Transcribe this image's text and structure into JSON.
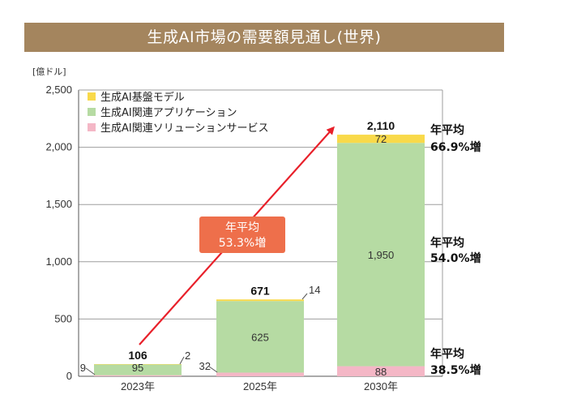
{
  "title": "生成AI市場の需要額見通し(世界)",
  "chart_data": {
    "type": "bar",
    "stacked": true,
    "unit": "[億ドル]",
    "categories": [
      "2023年",
      "2025年",
      "2030年"
    ],
    "ylim": [
      0,
      2500
    ],
    "yticks": [
      "0",
      "500",
      "1,000",
      "1,500",
      "2,000",
      "2,500"
    ],
    "ytick_values": [
      0,
      500,
      1000,
      1500,
      2000,
      2500
    ],
    "grid": true,
    "legend_position": "top-left",
    "series": [
      {
        "name": "生成AI関連ソリューションサービス",
        "color": "#f4b7c6",
        "values": [
          9,
          32,
          88
        ],
        "labels": [
          "9",
          "32",
          "88"
        ]
      },
      {
        "name": "生成AI関連アプリケーション",
        "color": "#b6dba3",
        "values": [
          95,
          625,
          1950
        ],
        "labels": [
          "95",
          "625",
          "1,950"
        ]
      },
      {
        "name": "生成AI基盤モデル",
        "color": "#f9d94a",
        "values": [
          2,
          14,
          72
        ],
        "labels": [
          "2",
          "14",
          "72"
        ]
      }
    ],
    "totals": [
      "106",
      "671",
      "2,110"
    ],
    "legend_order": [
      2,
      1,
      0
    ],
    "trend_badge": {
      "line1": "年平均",
      "line2": "53.3%増"
    },
    "segment_growth": [
      {
        "line1": "年平均",
        "line2": "66.9%増"
      },
      {
        "line1": "年平均",
        "line2": "54.0%増"
      },
      {
        "line1": "年平均",
        "line2": "38.5%増"
      }
    ],
    "colors": {
      "trend_arrow": "#e8202a",
      "badge": "#ee6f4b",
      "title_bar": "#a4855e"
    }
  }
}
